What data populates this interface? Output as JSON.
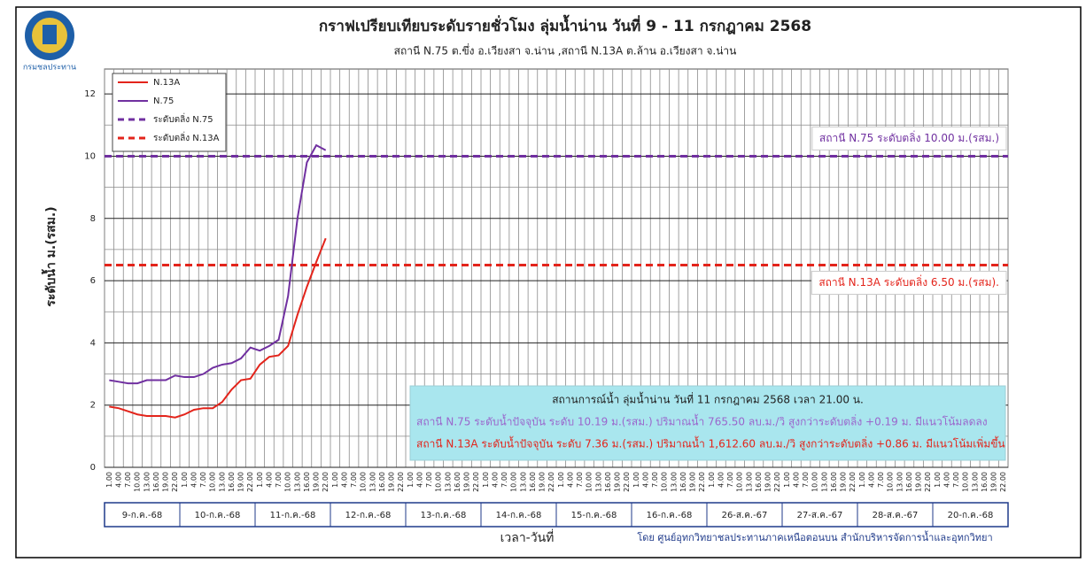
{
  "chart_data": {
    "type": "line",
    "logo_text": "กรมชลประทาน",
    "title": "กราฟเปรียบเทียบระดับรายชั่วโมง ลุ่มน้ำน่าน วันที่ 9 - 11 กรกฎาคม 2568",
    "subtitle": "สถานี  N.75 ต.ขึ่ง อ.เวียงสา จ.น่าน ,สถานี N.13A ต.ล้าน อ.เวียงสา จ.น่าน",
    "y_label": "ระดับน้ำ   ม.(รสม.)",
    "x_label": "เวลา-วันที่",
    "source": "โดย ศูนย์อุทกวิทยาชลประทานภาคเหนือตอนบน  สำนักบริหารจัดการน้ำและอุทกวิทยา",
    "categories": [
      "1.00",
      "4.00",
      "7.00",
      "10.00",
      "13.00",
      "16.00",
      "19.00",
      "22.00",
      "1.00",
      "4.00",
      "7.00",
      "10.00",
      "13.00",
      "16.00",
      "19.00",
      "22.00",
      "1.00",
      "4.00",
      "7.00",
      "10.00",
      "13.00",
      "16.00",
      "19.00",
      "22.00",
      "1.00",
      "4.00",
      "7.00",
      "10.00",
      "13.00",
      "16.00",
      "19.00",
      "22.00",
      "1.00",
      "4.00",
      "7.00",
      "10.00",
      "13.00",
      "16.00",
      "19.00",
      "22.00",
      "1.00",
      "4.00",
      "7.00",
      "10.00",
      "13.00",
      "16.00",
      "19.00",
      "22.00",
      "1.00",
      "4.00",
      "7.00",
      "10.00",
      "13.00",
      "16.00",
      "19.00",
      "22.00",
      "1.00",
      "4.00",
      "7.00",
      "10.00",
      "13.00",
      "16.00",
      "19.00",
      "22.00",
      "1.00",
      "4.00",
      "7.00",
      "10.00",
      "13.00",
      "16.00",
      "19.00",
      "22.00",
      "1.00",
      "4.00",
      "7.00",
      "10.00",
      "13.00",
      "16.00",
      "19.00",
      "22.00",
      "1.00",
      "4.00",
      "7.00",
      "10.00",
      "13.00",
      "16.00",
      "19.00",
      "22.00",
      "1.00",
      "4.00",
      "7.00",
      "10.00",
      "13.00",
      "16.00",
      "19.00",
      "22.00"
    ],
    "day_labels": [
      "9-ก.ค.-68",
      "10-ก.ค.-68",
      "11-ก.ค.-68",
      "12-ก.ค.-68",
      "13-ก.ค.-68",
      "14-ก.ค.-68",
      "15-ก.ค.-68",
      "16-ก.ค.-68",
      "26-ส.ค.-67",
      "27-ส.ค.-67",
      "28-ส.ค.-67",
      "20-ก.ค.-68"
    ],
    "series": [
      {
        "name": "N.13A",
        "color": "#e3241b",
        "values": [
          1.95,
          1.9,
          1.8,
          1.7,
          1.65,
          1.65,
          1.65,
          1.6,
          1.7,
          1.85,
          1.9,
          1.9,
          2.1,
          2.5,
          2.8,
          2.85,
          3.3,
          3.55,
          3.6,
          3.9,
          4.9,
          5.8,
          6.6,
          7.36,
          null,
          null,
          null,
          null,
          null,
          null,
          null,
          null,
          null,
          null,
          null,
          null,
          null,
          null,
          null,
          null,
          null,
          null,
          null,
          null,
          null,
          null,
          null,
          null,
          null,
          null,
          null,
          null,
          null,
          null,
          null,
          null,
          null,
          null,
          null,
          null,
          null,
          null,
          null,
          null,
          null,
          null,
          null,
          null,
          null,
          null,
          null,
          null,
          null,
          null,
          null,
          null,
          null,
          null,
          null,
          null,
          null,
          null,
          null,
          null,
          null,
          null,
          null,
          null,
          null,
          null,
          null,
          null,
          null,
          null,
          null,
          null
        ]
      },
      {
        "name": "N.75",
        "color": "#7030a0",
        "values": [
          2.8,
          2.75,
          2.7,
          2.7,
          2.8,
          2.8,
          2.8,
          2.95,
          2.9,
          2.9,
          3.0,
          3.2,
          3.3,
          3.35,
          3.5,
          3.85,
          3.75,
          3.9,
          4.1,
          5.5,
          8.0,
          9.8,
          10.35,
          10.19,
          null,
          null,
          null,
          null,
          null,
          null,
          null,
          null,
          null,
          null,
          null,
          null,
          null,
          null,
          null,
          null,
          null,
          null,
          null,
          null,
          null,
          null,
          null,
          null,
          null,
          null,
          null,
          null,
          null,
          null,
          null,
          null,
          null,
          null,
          null,
          null,
          null,
          null,
          null,
          null,
          null,
          null,
          null,
          null,
          null,
          null,
          null,
          null,
          null,
          null,
          null,
          null,
          null,
          null,
          null,
          null,
          null,
          null,
          null,
          null,
          null,
          null,
          null,
          null,
          null,
          null,
          null,
          null,
          null,
          null,
          null,
          null
        ]
      }
    ],
    "hlines": [
      {
        "name": "ระดับตลิ่ง N.75",
        "value": 10,
        "color": "#7030a0",
        "label": "สถานี N.75 ระดับตลิ่ง 10.00 ม.(รสม.)",
        "label_position": "above"
      },
      {
        "name": "ระดับตลิ่ง N.13A",
        "value": 6.5,
        "color": "#e3241b",
        "label": "สถานี N.13A ระดับตลิ่ง 6.50 ม.(รสม).",
        "label_position": "below"
      }
    ],
    "info": {
      "title": "สถานการณ์น้ำ ลุ่มน้ำน่าน วันที่  11 กรกฎาคม 2568 เวลา 21.00 น.",
      "lines": [
        {
          "text": "สถานี N.75 ระดับน้ำปัจจุบัน ระดับ 10.19 ม.(รสม.) ปริมาณน้ำ 765.50 ลบ.ม./วิ สูงกว่าระดับตลิ่ง +0.19 ม. มีแนวโน้มลดลง",
          "color": "#9a66cc"
        },
        {
          "text": "สถานี N.13A ระดับน้ำปัจจุบัน ระดับ 7.36 ม.(รสม.) ปริมาณน้ำ 1,612.60 ลบ.ม./วิ สูงกว่าระดับตลิ่ง +0.86  ม. มีแนวโน้มเพิ่มขึ้น",
          "color": "#e3241b"
        }
      ]
    },
    "ylim": [
      0,
      12.8
    ],
    "yticks": [
      0,
      2,
      4,
      6,
      8,
      10,
      12
    ],
    "minor_yticks": [
      1,
      3,
      5,
      7,
      9,
      11
    ],
    "grid": true
  }
}
